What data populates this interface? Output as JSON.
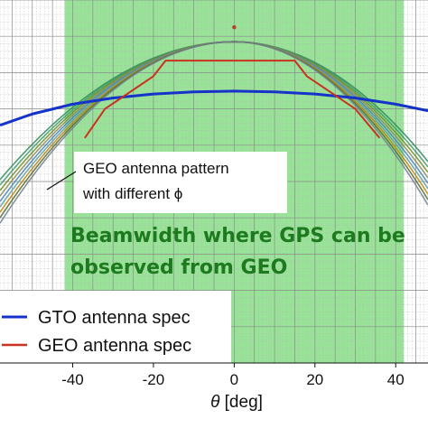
{
  "chart_data": {
    "type": "line",
    "xlabel_symbol": "θ",
    "xlabel_unit": " [deg]",
    "xlim": [
      -58,
      48
    ],
    "ylim": [
      0,
      1
    ],
    "x_ticks": [
      -40,
      -20,
      0,
      20,
      40
    ],
    "grid": true,
    "highlight_band": {
      "x": [
        -42,
        42
      ],
      "color": "#8ee08e"
    },
    "annotations": {
      "pattern_label_line1": "GEO antenna pattern",
      "pattern_label_line2": "with different ϕ",
      "beam_line1": "Beamwidth where GPS can be",
      "beam_line2": "observed from GEO",
      "beam_color": "#1e7a1e"
    },
    "marker_point": {
      "x": 0,
      "y": 0.925,
      "color": "#c0392b"
    },
    "legend_position": "bottom-left",
    "series": [
      {
        "name": "GTO antenna spec",
        "color": "#1533c8",
        "x": [
          -58,
          -50,
          -40,
          -30,
          -20,
          -10,
          0,
          10,
          20,
          30,
          40,
          48
        ],
        "y": [
          0.655,
          0.686,
          0.713,
          0.73,
          0.741,
          0.747,
          0.749,
          0.747,
          0.741,
          0.73,
          0.713,
          0.695
        ]
      },
      {
        "name": "GEO antenna spec",
        "color": "#c8321e",
        "x": [
          -37,
          -32,
          -20,
          -17,
          15,
          18,
          30,
          36
        ],
        "y": [
          0.62,
          0.7,
          0.79,
          0.833,
          0.833,
          0.79,
          0.7,
          0.62
        ]
      }
    ],
    "pattern_family": {
      "colors": [
        "#2e8b57",
        "#3c9a6a",
        "#6b8e23",
        "#8b8b5a",
        "#4682b4",
        "#5f9ea0",
        "#b8860b",
        "#556b2f",
        "#708090"
      ],
      "peak": 0.885,
      "edge_values_at_minus58": [
        0.505,
        0.49,
        0.475,
        0.46,
        0.445,
        0.43,
        0.415,
        0.4,
        0.385
      ],
      "edge_values_at_48": [
        0.555,
        0.54,
        0.525,
        0.51,
        0.495,
        0.48,
        0.465,
        0.45,
        0.435
      ]
    }
  }
}
